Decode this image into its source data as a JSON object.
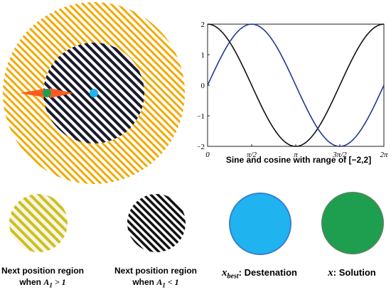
{
  "colors": {
    "outer_stripe": "#f2a900",
    "inner_stripe": "#1a1a2e",
    "orange_arrow": "#ff5a1f",
    "solution_green": "#1e9e4f",
    "destination_blue": "#1fb4f0",
    "sine_line": "#1f3a93",
    "cosine_line": "#111111",
    "yellow_stripe": "#c9c21e"
  },
  "chart_data": {
    "type": "line",
    "title": "Sine and cosine with range of [−2,2]",
    "xlim": [
      0,
      6.2832
    ],
    "ylim": [
      -2,
      2
    ],
    "x_tick_labels": [
      "0",
      "π/2",
      "π",
      "3π/2",
      "2π"
    ],
    "y_tick_labels": [
      "2",
      "1",
      "0",
      "−1",
      "−2"
    ],
    "series": [
      {
        "function": "2·sin(x)",
        "color": "#1f3a93"
      },
      {
        "function": "2·cos(x)",
        "color": "#111111"
      }
    ],
    "grid": false
  },
  "legend": {
    "item1": {
      "line1": "Next position region",
      "line2_prefix": "when ",
      "math": "A",
      "sub": "1",
      "rel": " > 1"
    },
    "item2": {
      "line1": "Next position region",
      "line2_prefix": "when ",
      "math": "A",
      "sub": "1",
      "rel": " < 1"
    },
    "item3": {
      "math": "x",
      "sub": "best",
      "text": ": Destenation"
    },
    "item4": {
      "math": "x",
      "text": ": Solution"
    }
  }
}
